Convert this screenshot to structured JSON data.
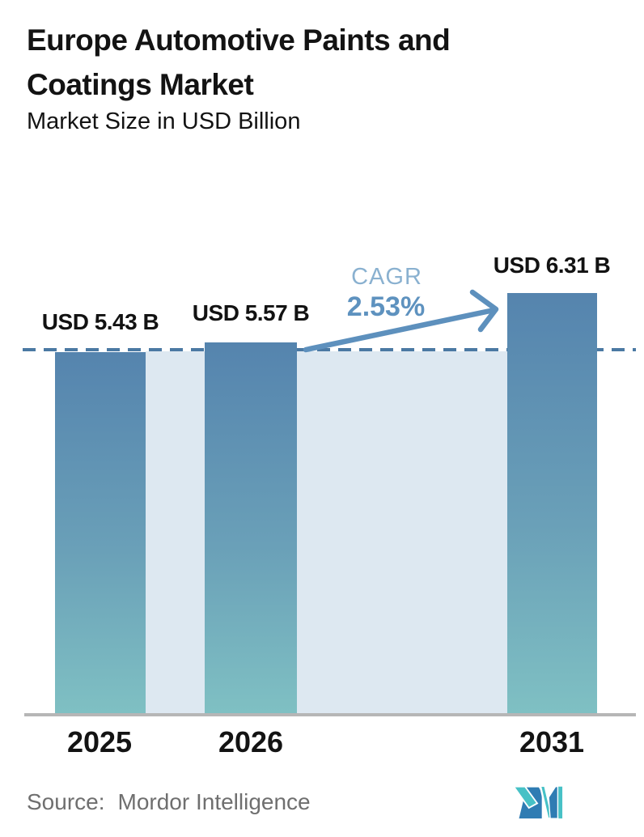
{
  "header": {
    "title_line1": "Europe Automotive Paints and",
    "title_line2": "Coatings Market",
    "subtitle": "Market Size in USD Billion"
  },
  "chart_data": {
    "type": "bar",
    "title": "Europe Automotive Paints and Coatings Market",
    "subtitle": "Market Size in USD Billion",
    "ylabel": "Market Size in USD Billion",
    "categories": [
      "2025",
      "2026",
      "2031"
    ],
    "values": [
      5.43,
      5.57,
      6.31
    ],
    "bar_labels": [
      "USD 5.43 B",
      "USD 5.57 B",
      "USD 6.31 B"
    ],
    "ylim": [
      0,
      7
    ],
    "grid": false,
    "legend": false,
    "annotations": {
      "cagr_label": "CAGR",
      "cagr_value": "2.53%",
      "baseline_at_value": 5.43,
      "baseline_style": "dashed",
      "arrow": "from top of 2026 bar to top of 2031 bar"
    },
    "colors": {
      "bar_gradient_top": "#5584ae",
      "bar_gradient_bottom": "#7fc0c3",
      "baseline_dash": "#4b79a3",
      "cagr_value_text": "#5e92bf",
      "cagr_label_text": "#8ab1d0",
      "highlight_region": "#dde8f1",
      "axis_line": "#b6b6b6",
      "title_text": "#131313",
      "source_text": "#6f6f6f",
      "logo_teal": "#47c1c6",
      "logo_blue": "#2f7cb3"
    }
  },
  "footer": {
    "source_label": "Source:",
    "source_value": "Mordor Intelligence",
    "logo": "mordor-intelligence-logo"
  }
}
